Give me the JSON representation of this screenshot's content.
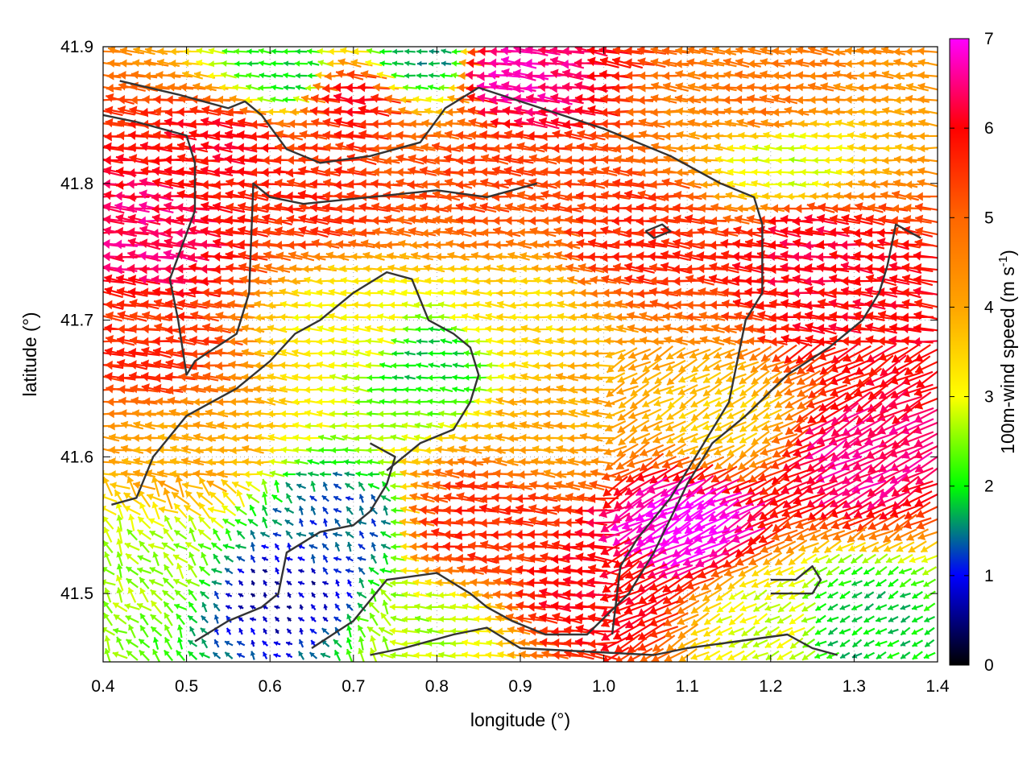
{
  "chart_data": {
    "type": "vector-field",
    "xlabel": "longitude (°)",
    "ylabel": "latitude (°)",
    "xlim": [
      0.4,
      1.4
    ],
    "ylim": [
      41.45,
      41.9
    ],
    "xticks": [
      "0.4",
      "0.5",
      "0.6",
      "0.7",
      "0.8",
      "0.9",
      "1.0",
      "1.1",
      "1.2",
      "1.3",
      "1.4"
    ],
    "yticks": [
      "41.5",
      "41.6",
      "41.7",
      "41.8",
      "41.9"
    ],
    "colorbar": {
      "label": "100m-wind speed (m s",
      "label_sup": "-1",
      "label_end": ")",
      "range": [
        0,
        7
      ],
      "ticks": [
        "0",
        "1",
        "2",
        "3",
        "4",
        "5",
        "6",
        "7"
      ],
      "palette": [
        "#000000",
        "#0000ff",
        "#00ff00",
        "#ffff00",
        "#ffa500",
        "#ff6600",
        "#ff0000",
        "#ff00ff"
      ]
    },
    "grid": "dotted",
    "wind_regions": [
      {
        "lon": 0.46,
        "lat": 41.76,
        "speed": 6.4
      },
      {
        "lon": 0.55,
        "lat": 41.83,
        "speed": 6.0
      },
      {
        "lon": 0.45,
        "lat": 41.68,
        "speed": 5.6
      },
      {
        "lon": 0.65,
        "lat": 41.79,
        "speed": 5.6
      },
      {
        "lon": 0.85,
        "lat": 41.8,
        "speed": 5.3
      },
      {
        "lon": 0.7,
        "lat": 41.86,
        "speed": 5.9
      },
      {
        "lon": 0.9,
        "lat": 41.88,
        "speed": 6.6
      },
      {
        "lon": 1.2,
        "lat": 41.86,
        "speed": 4.8
      },
      {
        "lon": 1.05,
        "lat": 41.76,
        "speed": 5.6
      },
      {
        "lon": 1.25,
        "lat": 41.75,
        "speed": 6.1
      },
      {
        "lon": 1.3,
        "lat": 41.7,
        "speed": 6.0
      },
      {
        "lon": 1.3,
        "lat": 41.6,
        "speed": 6.5
      },
      {
        "lon": 1.1,
        "lat": 41.55,
        "speed": 7.0
      },
      {
        "lon": 1.0,
        "lat": 41.5,
        "speed": 6.0
      },
      {
        "lon": 0.85,
        "lat": 41.55,
        "speed": 5.6
      },
      {
        "lon": 0.8,
        "lat": 41.67,
        "speed": 1.9
      },
      {
        "lon": 0.9,
        "lat": 41.7,
        "speed": 3.4
      },
      {
        "lon": 0.7,
        "lat": 41.7,
        "speed": 3.1
      },
      {
        "lon": 0.5,
        "lat": 41.6,
        "speed": 4.0
      },
      {
        "lon": 0.68,
        "lat": 41.55,
        "speed": 1.3
      },
      {
        "lon": 0.62,
        "lat": 41.5,
        "speed": 0.7
      },
      {
        "lon": 0.45,
        "lat": 41.52,
        "speed": 2.6
      },
      {
        "lon": 0.78,
        "lat": 41.47,
        "speed": 2.7
      },
      {
        "lon": 1.2,
        "lat": 41.48,
        "speed": 2.9
      },
      {
        "lon": 1.3,
        "lat": 41.48,
        "speed": 1.8
      },
      {
        "lon": 0.95,
        "lat": 41.63,
        "speed": 4.0
      },
      {
        "lon": 1.15,
        "lat": 41.63,
        "speed": 3.6
      },
      {
        "lon": 1.22,
        "lat": 41.82,
        "speed": 2.8
      },
      {
        "lon": 0.62,
        "lat": 41.88,
        "speed": 1.9
      },
      {
        "lon": 0.78,
        "lat": 41.89,
        "speed": 1.6
      }
    ],
    "wind_direction": {
      "lon": -1.0,
      "lat": 0.1
    },
    "boundaries": [
      {
        "name": "",
        "points": [
          [
            0.42,
            41.875
          ],
          [
            0.49,
            41.865
          ],
          [
            0.55,
            41.855
          ],
          [
            0.57,
            41.86
          ],
          [
            0.59,
            41.85
          ],
          [
            0.62,
            41.825
          ],
          [
            0.66,
            41.815
          ],
          [
            0.72,
            41.82
          ],
          [
            0.78,
            41.83
          ],
          [
            0.81,
            41.855
          ],
          [
            0.85,
            41.87
          ],
          [
            0.9,
            41.86
          ],
          [
            1.0,
            41.84
          ],
          [
            1.08,
            41.82
          ],
          [
            1.14,
            41.8
          ],
          [
            1.18,
            41.79
          ],
          [
            1.19,
            41.77
          ],
          [
            1.19,
            41.72
          ],
          [
            1.17,
            41.7
          ],
          [
            1.15,
            41.64
          ],
          [
            1.12,
            41.61
          ],
          [
            1.08,
            41.57
          ],
          [
            1.04,
            41.54
          ],
          [
            1.02,
            41.52
          ],
          [
            1.01,
            41.47
          ]
        ]
      },
      {
        "name": "",
        "points": [
          [
            0.4,
            41.85
          ],
          [
            0.44,
            41.845
          ],
          [
            0.5,
            41.835
          ],
          [
            0.51,
            41.815
          ],
          [
            0.51,
            41.78
          ],
          [
            0.48,
            41.73
          ],
          [
            0.49,
            41.7
          ],
          [
            0.5,
            41.66
          ],
          [
            0.51,
            41.67
          ],
          [
            0.56,
            41.69
          ],
          [
            0.575,
            41.72
          ],
          [
            0.58,
            41.8
          ],
          [
            0.6,
            41.79
          ],
          [
            0.64,
            41.785
          ],
          [
            0.72,
            41.79
          ],
          [
            0.8,
            41.795
          ],
          [
            0.86,
            41.79
          ],
          [
            0.92,
            41.8
          ]
        ]
      },
      {
        "name": "",
        "points": [
          [
            0.41,
            41.565
          ],
          [
            0.44,
            41.57
          ],
          [
            0.46,
            41.6
          ],
          [
            0.5,
            41.63
          ],
          [
            0.56,
            41.65
          ],
          [
            0.6,
            41.67
          ],
          [
            0.63,
            41.69
          ],
          [
            0.66,
            41.7
          ],
          [
            0.7,
            41.72
          ],
          [
            0.74,
            41.735
          ],
          [
            0.77,
            41.73
          ],
          [
            0.79,
            41.7
          ],
          [
            0.82,
            41.69
          ],
          [
            0.84,
            41.68
          ],
          [
            0.85,
            41.66
          ],
          [
            0.84,
            41.64
          ],
          [
            0.82,
            41.62
          ],
          [
            0.78,
            41.61
          ],
          [
            0.76,
            41.6
          ],
          [
            0.74,
            41.59
          ]
        ]
      },
      {
        "name": "",
        "points": [
          [
            0.51,
            41.465
          ],
          [
            0.55,
            41.48
          ],
          [
            0.59,
            41.49
          ],
          [
            0.61,
            41.5
          ],
          [
            0.62,
            41.53
          ],
          [
            0.66,
            41.545
          ],
          [
            0.7,
            41.55
          ],
          [
            0.72,
            41.56
          ],
          [
            0.74,
            41.58
          ],
          [
            0.75,
            41.6
          ],
          [
            0.72,
            41.61
          ]
        ]
      },
      {
        "name": "",
        "points": [
          [
            0.65,
            41.46
          ],
          [
            0.7,
            41.48
          ],
          [
            0.74,
            41.51
          ],
          [
            0.8,
            41.515
          ],
          [
            0.84,
            41.5
          ],
          [
            0.86,
            41.49
          ],
          [
            0.89,
            41.48
          ],
          [
            0.93,
            41.47
          ],
          [
            0.98,
            41.47
          ],
          [
            1.03,
            41.5
          ],
          [
            1.06,
            41.53
          ],
          [
            1.1,
            41.58
          ],
          [
            1.13,
            41.61
          ],
          [
            1.17,
            41.63
          ],
          [
            1.22,
            41.66
          ],
          [
            1.27,
            41.68
          ],
          [
            1.31,
            41.7
          ],
          [
            1.33,
            41.72
          ],
          [
            1.34,
            41.74
          ],
          [
            1.35,
            41.77
          ],
          [
            1.38,
            41.76
          ]
        ]
      },
      {
        "name": "",
        "points": [
          [
            0.72,
            41.455
          ],
          [
            0.76,
            41.46
          ],
          [
            0.82,
            41.47
          ],
          [
            0.86,
            41.475
          ],
          [
            0.9,
            41.46
          ],
          [
            1.06,
            41.455
          ],
          [
            1.1,
            41.46
          ],
          [
            1.16,
            41.465
          ],
          [
            1.22,
            41.47
          ],
          [
            1.25,
            41.46
          ],
          [
            1.28,
            41.455
          ]
        ]
      },
      {
        "name": "",
        "points": [
          [
            1.2,
            41.51
          ],
          [
            1.23,
            41.51
          ],
          [
            1.25,
            41.52
          ],
          [
            1.26,
            41.51
          ],
          [
            1.25,
            41.5
          ],
          [
            1.2,
            41.5
          ]
        ]
      },
      {
        "name": "",
        "points": [
          [
            1.05,
            41.765
          ],
          [
            1.07,
            41.77
          ],
          [
            1.08,
            41.765
          ],
          [
            1.06,
            41.76
          ],
          [
            1.05,
            41.765
          ]
        ]
      }
    ]
  }
}
